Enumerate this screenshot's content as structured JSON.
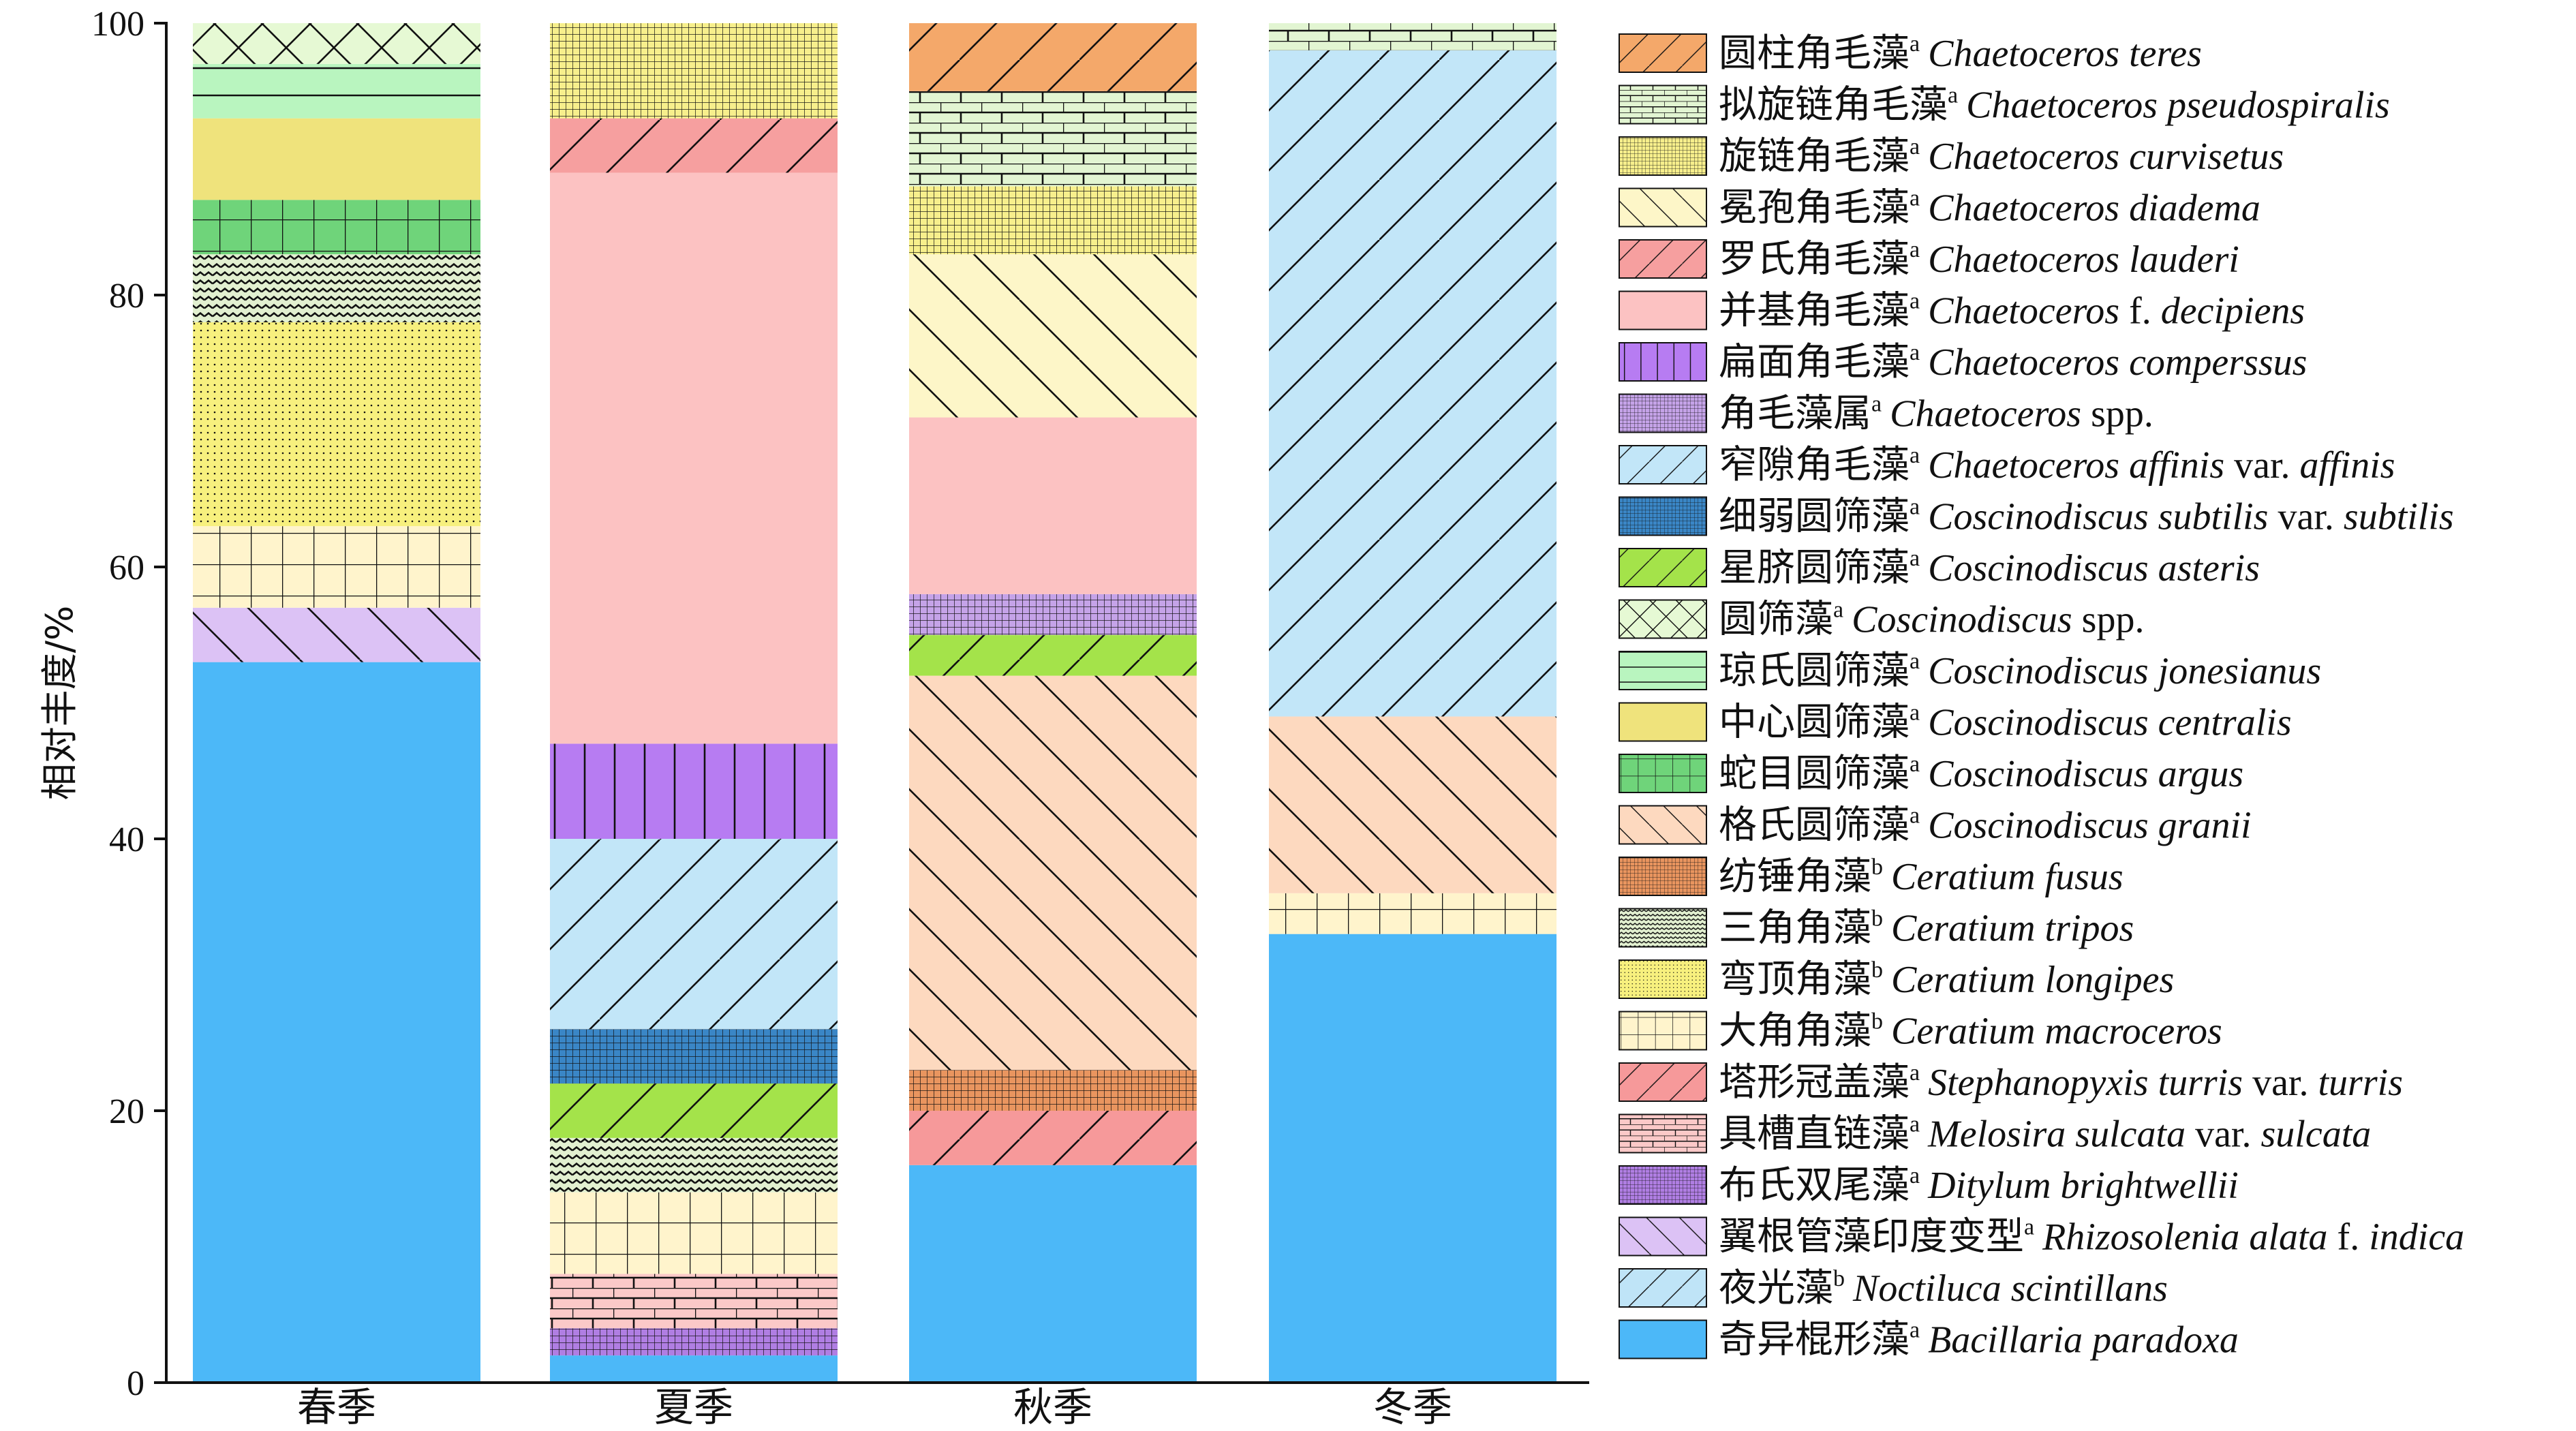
{
  "chart_data": {
    "type": "bar",
    "stacked": true,
    "categories": [
      "春季",
      "夏季",
      "秋季",
      "冬季"
    ],
    "ylabel": "相对丰度/%",
    "xlabel": "",
    "ylim": [
      0,
      100
    ],
    "yticks": [
      0,
      20,
      40,
      60,
      80,
      100
    ],
    "grid": false,
    "legend_position": "right",
    "series": [
      {
        "name_cn": "奇异棍形藻",
        "sup": "a",
        "parts": [
          {
            "t": "Bacillaria paradoxa",
            "i": true
          }
        ],
        "fill": "#4cb8f8",
        "pattern": "none",
        "values": [
          53,
          2,
          16,
          33
        ]
      },
      {
        "name_cn": "夜光藻",
        "sup": "b",
        "parts": [
          {
            "t": "Noctiluca scintillans",
            "i": true
          }
        ],
        "fill": "#bfe4f7",
        "pattern": "fdiag",
        "values": [
          0,
          0,
          0,
          0
        ]
      },
      {
        "name_cn": "翼根管藻印度变型",
        "sup": "a",
        "parts": [
          {
            "t": "Rhizosolenia alata",
            "i": true
          },
          {
            "t": " f. ",
            "i": false
          },
          {
            "t": "indica",
            "i": true
          }
        ],
        "fill": "#dcc2f5",
        "pattern": "bdiag",
        "values": [
          4,
          0,
          0,
          0
        ]
      },
      {
        "name_cn": "布氏双尾藻",
        "sup": "a",
        "parts": [
          {
            "t": "Ditylum brightwellii",
            "i": true
          }
        ],
        "fill": "#b07ee3",
        "pattern": "finegrid",
        "values": [
          0,
          2,
          0,
          0
        ]
      },
      {
        "name_cn": "具槽直链藻",
        "sup": "a",
        "parts": [
          {
            "t": "Melosira sulcata",
            "i": true
          },
          {
            "t": " var. ",
            "i": false
          },
          {
            "t": "sulcata",
            "i": true
          }
        ],
        "fill": "#fbc9c8",
        "pattern": "brick",
        "values": [
          0,
          4,
          0,
          0
        ]
      },
      {
        "name_cn": "塔形冠盖藻",
        "sup": "a",
        "parts": [
          {
            "t": "Stephanopyxis turris",
            "i": true
          },
          {
            "t": " var. ",
            "i": false
          },
          {
            "t": "turris",
            "i": true
          }
        ],
        "fill": "#f6999a",
        "pattern": "fdiag",
        "values": [
          0,
          0,
          4,
          0
        ]
      },
      {
        "name_cn": "大角角藻",
        "sup": "b",
        "parts": [
          {
            "t": "Ceratium macroceros",
            "i": true
          }
        ],
        "fill": "#fff4cc",
        "pattern": "grid",
        "values": [
          6,
          6,
          0,
          3
        ]
      },
      {
        "name_cn": "弯顶角藻",
        "sup": "b",
        "parts": [
          {
            "t": "Ceratium longipes",
            "i": true
          }
        ],
        "fill": "#f7f07e",
        "pattern": "dots",
        "values": [
          15,
          0,
          0,
          0
        ]
      },
      {
        "name_cn": "三角角藻",
        "sup": "b",
        "parts": [
          {
            "t": "Ceratium tripos",
            "i": true
          }
        ],
        "fill": "#e2f0d0",
        "pattern": "zigzag",
        "values": [
          5,
          4,
          0,
          0
        ]
      },
      {
        "name_cn": "纺锤角藻",
        "sup": "b",
        "parts": [
          {
            "t": "Ceratium fusus",
            "i": true
          }
        ],
        "fill": "#e9955f",
        "pattern": "finegrid",
        "values": [
          0,
          0,
          3,
          0
        ]
      },
      {
        "name_cn": "格氏圆筛藻",
        "sup": "a",
        "parts": [
          {
            "t": "Coscinodiscus granii",
            "i": true
          }
        ],
        "fill": "#fdd9bf",
        "pattern": "bdiag",
        "values": [
          0,
          0,
          29,
          13
        ]
      },
      {
        "name_cn": "蛇目圆筛藻",
        "sup": "a",
        "parts": [
          {
            "t": "Coscinodiscus argus",
            "i": true
          }
        ],
        "fill": "#6fd47a",
        "pattern": "grid",
        "values": [
          4,
          0,
          0,
          0
        ]
      },
      {
        "name_cn": "中心圆筛藻",
        "sup": "a",
        "parts": [
          {
            "t": "Coscinodiscus centralis",
            "i": true
          }
        ],
        "fill": "#efe37c",
        "pattern": "none",
        "values": [
          6,
          0,
          0,
          0
        ]
      },
      {
        "name_cn": "琼氏圆筛藻",
        "sup": "a",
        "parts": [
          {
            "t": "Coscinodiscus jonesianus",
            "i": true
          }
        ],
        "fill": "#b9f5bf",
        "pattern": "hline",
        "values": [
          4,
          0,
          0,
          0
        ]
      },
      {
        "name_cn": "圆筛藻",
        "sup": "a",
        "parts": [
          {
            "t": "Coscinodiscus",
            "i": true
          },
          {
            "t": " spp.",
            "i": false
          }
        ],
        "fill": "#e6f9d4",
        "pattern": "cross",
        "values": [
          3,
          0,
          0,
          0
        ]
      },
      {
        "name_cn": "星脐圆筛藻",
        "sup": "a",
        "parts": [
          {
            "t": "Coscinodiscus asteris",
            "i": true
          }
        ],
        "fill": "#a4e34a",
        "pattern": "fdiag",
        "values": [
          0,
          4,
          3,
          0
        ]
      },
      {
        "name_cn": "细弱圆筛藻",
        "sup": "a",
        "parts": [
          {
            "t": "Coscinodiscus subtilis",
            "i": true
          },
          {
            "t": " var. ",
            "i": false
          },
          {
            "t": "subtilis",
            "i": true
          }
        ],
        "fill": "#3a86c6",
        "pattern": "finegrid",
        "values": [
          0,
          4,
          0,
          0
        ]
      },
      {
        "name_cn": "窄隙角毛藻",
        "sup": "a",
        "parts": [
          {
            "t": "Chaetoceros affinis",
            "i": true
          },
          {
            "t": " var. ",
            "i": false
          },
          {
            "t": "affinis",
            "i": true
          }
        ],
        "fill": "#c2e6f8",
        "pattern": "fdiag",
        "values": [
          0,
          14,
          0,
          49
        ]
      },
      {
        "name_cn": "角毛藻属",
        "sup": "a",
        "parts": [
          {
            "t": "Chaetoceros",
            "i": true
          },
          {
            "t": " spp.",
            "i": false
          }
        ],
        "fill": "#c5a3e8",
        "pattern": "finegrid",
        "values": [
          0,
          0,
          3,
          0
        ]
      },
      {
        "name_cn": "扁面角毛藻",
        "sup": "a",
        "parts": [
          {
            "t": "Chaetoceros comperssus",
            "i": true
          }
        ],
        "fill": "#b77cf2",
        "pattern": "vline",
        "values": [
          0,
          7,
          0,
          0
        ]
      },
      {
        "name_cn": "并基角毛藻",
        "sup": "a",
        "parts": [
          {
            "t": "Chaetoceros",
            "i": true
          },
          {
            "t": " f. ",
            "i": false
          },
          {
            "t": "decipiens",
            "i": true
          }
        ],
        "fill": "#fcc2c2",
        "pattern": "none",
        "values": [
          0,
          42,
          13,
          0
        ]
      },
      {
        "name_cn": "罗氏角毛藻",
        "sup": "a",
        "parts": [
          {
            "t": "Chaetoceros lauderi",
            "i": true
          }
        ],
        "fill": "#f69f9f",
        "pattern": "fdiag",
        "values": [
          0,
          4,
          0,
          0
        ]
      },
      {
        "name_cn": "冕孢角毛藻",
        "sup": "a",
        "parts": [
          {
            "t": "Chaetoceros diadema",
            "i": true
          }
        ],
        "fill": "#fdf6c8",
        "pattern": "bdiag",
        "values": [
          0,
          0,
          12,
          0
        ]
      },
      {
        "name_cn": "旋链角毛藻",
        "sup": "a",
        "parts": [
          {
            "t": "Chaetoceros curvisetus",
            "i": true
          }
        ],
        "fill": "#f7ef8c",
        "pattern": "finegrid",
        "values": [
          0,
          7,
          5,
          0
        ]
      },
      {
        "name_cn": "拟旋链角毛藻",
        "sup": "a",
        "parts": [
          {
            "t": "Chaetoceros pseudospiralis",
            "i": true
          }
        ],
        "fill": "#e2f5d2",
        "pattern": "brick",
        "values": [
          0,
          0,
          7,
          2
        ]
      },
      {
        "name_cn": "圆柱角毛藻",
        "sup": "a",
        "parts": [
          {
            "t": "Chaetoceros teres",
            "i": true
          }
        ],
        "fill": "#f4a86a",
        "pattern": "fdiag",
        "values": [
          0,
          0,
          5,
          0
        ]
      }
    ]
  }
}
